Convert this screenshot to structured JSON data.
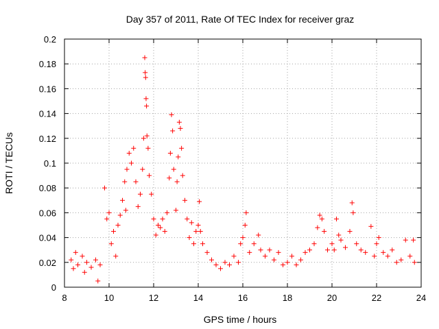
{
  "chart_data": {
    "type": "scatter",
    "title": "Day 357 of 2011, Rate Of TEC Index for receiver graz",
    "xlabel": "GPS time / hours",
    "ylabel": "ROTI / TECUs",
    "xlim": [
      8,
      24
    ],
    "ylim": [
      0,
      0.2
    ],
    "xticks": [
      8,
      10,
      12,
      14,
      16,
      18,
      20,
      22,
      24
    ],
    "yticks": [
      0,
      0.02,
      0.04,
      0.06,
      0.08,
      0.1,
      0.12,
      0.14,
      0.16,
      0.18,
      0.2
    ],
    "grid": true,
    "marker": "+",
    "color": "#ff0000",
    "series": [
      {
        "values": [
          [
            8.3,
            0.022
          ],
          [
            8.4,
            0.015
          ],
          [
            8.5,
            0.028
          ],
          [
            8.6,
            0.018
          ],
          [
            8.8,
            0.025
          ],
          [
            8.9,
            0.012
          ],
          [
            9.0,
            0.02
          ],
          [
            9.2,
            0.016
          ],
          [
            9.4,
            0.022
          ],
          [
            9.5,
            0.005
          ],
          [
            9.6,
            0.018
          ],
          [
            9.8,
            0.08
          ],
          [
            9.9,
            0.055
          ],
          [
            10.0,
            0.06
          ],
          [
            10.1,
            0.035
          ],
          [
            10.2,
            0.045
          ],
          [
            10.3,
            0.025
          ],
          [
            10.4,
            0.05
          ],
          [
            10.5,
            0.058
          ],
          [
            10.6,
            0.07
          ],
          [
            10.7,
            0.085
          ],
          [
            10.75,
            0.062
          ],
          [
            10.8,
            0.095
          ],
          [
            10.9,
            0.108
          ],
          [
            11.0,
            0.1
          ],
          [
            11.1,
            0.112
          ],
          [
            11.2,
            0.085
          ],
          [
            11.3,
            0.065
          ],
          [
            11.4,
            0.075
          ],
          [
            11.5,
            0.095
          ],
          [
            11.55,
            0.12
          ],
          [
            11.6,
            0.185
          ],
          [
            11.62,
            0.173
          ],
          [
            11.64,
            0.169
          ],
          [
            11.66,
            0.152
          ],
          [
            11.68,
            0.146
          ],
          [
            11.7,
            0.122
          ],
          [
            11.75,
            0.112
          ],
          [
            11.8,
            0.09
          ],
          [
            11.9,
            0.075
          ],
          [
            12.0,
            0.055
          ],
          [
            12.1,
            0.042
          ],
          [
            12.2,
            0.05
          ],
          [
            12.3,
            0.048
          ],
          [
            12.4,
            0.055
          ],
          [
            12.5,
            0.045
          ],
          [
            12.6,
            0.06
          ],
          [
            12.7,
            0.088
          ],
          [
            12.75,
            0.108
          ],
          [
            12.8,
            0.139
          ],
          [
            12.85,
            0.126
          ],
          [
            12.9,
            0.095
          ],
          [
            13.0,
            0.062
          ],
          [
            13.05,
            0.085
          ],
          [
            13.1,
            0.105
          ],
          [
            13.15,
            0.133
          ],
          [
            13.2,
            0.128
          ],
          [
            13.25,
            0.112
          ],
          [
            13.3,
            0.09
          ],
          [
            13.4,
            0.07
          ],
          [
            13.5,
            0.055
          ],
          [
            13.6,
            0.04
          ],
          [
            13.7,
            0.052
          ],
          [
            13.8,
            0.035
          ],
          [
            13.9,
            0.045
          ],
          [
            14.0,
            0.05
          ],
          [
            14.05,
            0.069
          ],
          [
            14.1,
            0.045
          ],
          [
            14.2,
            0.035
          ],
          [
            14.4,
            0.028
          ],
          [
            14.6,
            0.022
          ],
          [
            14.8,
            0.018
          ],
          [
            15.0,
            0.015
          ],
          [
            15.2,
            0.02
          ],
          [
            15.4,
            0.018
          ],
          [
            15.6,
            0.025
          ],
          [
            15.8,
            0.02
          ],
          [
            15.9,
            0.035
          ],
          [
            16.0,
            0.04
          ],
          [
            16.1,
            0.05
          ],
          [
            16.15,
            0.06
          ],
          [
            16.3,
            0.028
          ],
          [
            16.5,
            0.035
          ],
          [
            16.7,
            0.042
          ],
          [
            16.8,
            0.03
          ],
          [
            17.0,
            0.025
          ],
          [
            17.2,
            0.03
          ],
          [
            17.4,
            0.022
          ],
          [
            17.6,
            0.028
          ],
          [
            17.8,
            0.018
          ],
          [
            18.0,
            0.02
          ],
          [
            18.2,
            0.025
          ],
          [
            18.4,
            0.018
          ],
          [
            18.6,
            0.022
          ],
          [
            18.8,
            0.028
          ],
          [
            19.0,
            0.03
          ],
          [
            19.2,
            0.035
          ],
          [
            19.35,
            0.048
          ],
          [
            19.45,
            0.058
          ],
          [
            19.55,
            0.055
          ],
          [
            19.65,
            0.045
          ],
          [
            19.8,
            0.03
          ],
          [
            20.0,
            0.035
          ],
          [
            20.1,
            0.03
          ],
          [
            20.2,
            0.055
          ],
          [
            20.3,
            0.042
          ],
          [
            20.4,
            0.038
          ],
          [
            20.6,
            0.032
          ],
          [
            20.8,
            0.045
          ],
          [
            20.9,
            0.068
          ],
          [
            20.95,
            0.06
          ],
          [
            21.1,
            0.035
          ],
          [
            21.3,
            0.03
          ],
          [
            21.5,
            0.028
          ],
          [
            21.75,
            0.049
          ],
          [
            21.9,
            0.025
          ],
          [
            22.0,
            0.035
          ],
          [
            22.1,
            0.04
          ],
          [
            22.3,
            0.028
          ],
          [
            22.5,
            0.025
          ],
          [
            22.7,
            0.03
          ],
          [
            22.9,
            0.02
          ],
          [
            23.1,
            0.022
          ],
          [
            23.3,
            0.038
          ],
          [
            23.5,
            0.025
          ],
          [
            23.65,
            0.038
          ],
          [
            23.7,
            0.02
          ]
        ]
      }
    ]
  }
}
